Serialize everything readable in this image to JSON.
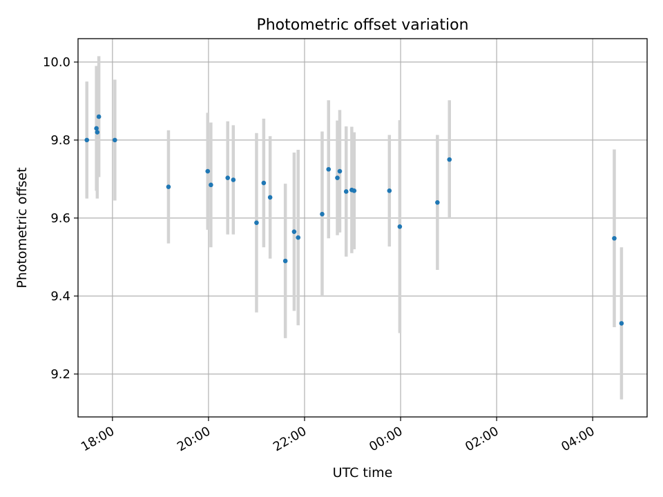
{
  "chart_data": {
    "type": "scatter",
    "title": "Photometric offset variation",
    "xlabel": "UTC time",
    "ylabel": "Photometric offset",
    "grid": true,
    "x_ticks": [
      "18:00",
      "20:00",
      "22:00",
      "00:00",
      "02:00",
      "04:00"
    ],
    "y_ticks": [
      "9.2",
      "9.4",
      "9.6",
      "9.8",
      "10.0"
    ],
    "xlim": [
      "17:17",
      "05:08"
    ],
    "ylim": [
      9.09,
      10.06
    ],
    "colors": {
      "point": "#1f77b4",
      "errorbar": "#d3d3d3"
    },
    "points": [
      {
        "x": "17:28",
        "y": 9.8,
        "err": 0.15
      },
      {
        "x": "17:40",
        "y": 9.83,
        "err": 0.16
      },
      {
        "x": "17:41",
        "y": 9.82,
        "err": 0.17
      },
      {
        "x": "17:43",
        "y": 9.86,
        "err": 0.155
      },
      {
        "x": "18:03",
        "y": 9.8,
        "err": 0.155
      },
      {
        "x": "19:10",
        "y": 9.68,
        "err": 0.145
      },
      {
        "x": "19:59",
        "y": 9.72,
        "err": 0.15
      },
      {
        "x": "20:03",
        "y": 9.685,
        "err": 0.16
      },
      {
        "x": "20:24",
        "y": 9.703,
        "err": 0.145
      },
      {
        "x": "20:31",
        "y": 9.698,
        "err": 0.14
      },
      {
        "x": "21:00",
        "y": 9.588,
        "err": 0.23
      },
      {
        "x": "21:09",
        "y": 9.69,
        "err": 0.165
      },
      {
        "x": "21:17",
        "y": 9.653,
        "err": 0.157
      },
      {
        "x": "21:36",
        "y": 9.49,
        "err": 0.198
      },
      {
        "x": "21:47",
        "y": 9.565,
        "err": 0.203
      },
      {
        "x": "21:52",
        "y": 9.55,
        "err": 0.225
      },
      {
        "x": "22:22",
        "y": 9.61,
        "err": 0.212
      },
      {
        "x": "22:30",
        "y": 9.725,
        "err": 0.177
      },
      {
        "x": "22:41",
        "y": 9.703,
        "err": 0.147
      },
      {
        "x": "22:44",
        "y": 9.72,
        "err": 0.157
      },
      {
        "x": "22:52",
        "y": 9.668,
        "err": 0.167
      },
      {
        "x": "22:59",
        "y": 9.672,
        "err": 0.162
      },
      {
        "x": "23:02",
        "y": 9.67,
        "err": 0.15
      },
      {
        "x": "23:46",
        "y": 9.67,
        "err": 0.143
      },
      {
        "x": "23:59",
        "y": 9.578,
        "err": 0.273
      },
      {
        "x": "00:46",
        "y": 9.64,
        "err": 0.173
      },
      {
        "x": "01:01",
        "y": 9.75,
        "err": 0.152
      },
      {
        "x": "04:27",
        "y": 9.548,
        "err": 0.228
      },
      {
        "x": "04:36",
        "y": 9.33,
        "err": 0.195
      }
    ]
  }
}
